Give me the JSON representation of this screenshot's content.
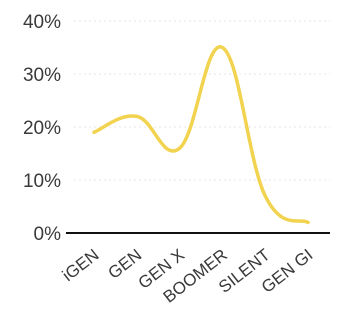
{
  "chart_data": {
    "type": "line",
    "title": "",
    "xlabel": "",
    "ylabel": "",
    "categories": [
      "iGEN",
      "GEN",
      "GEN X",
      "BOOMER",
      "SILENT",
      "GEN GI"
    ],
    "series": [
      {
        "values": [
          19,
          22,
          16,
          35,
          7,
          2
        ],
        "color": "#f2d34f"
      }
    ],
    "y_ticks": [
      {
        "value": 0,
        "label": "0%"
      },
      {
        "value": 10,
        "label": "10%"
      },
      {
        "value": 20,
        "label": "20%"
      },
      {
        "value": 30,
        "label": "30%"
      },
      {
        "value": 40,
        "label": "40%"
      }
    ],
    "ylim": [
      0,
      40
    ],
    "grid": true,
    "legend": "none",
    "smooth": true
  }
}
